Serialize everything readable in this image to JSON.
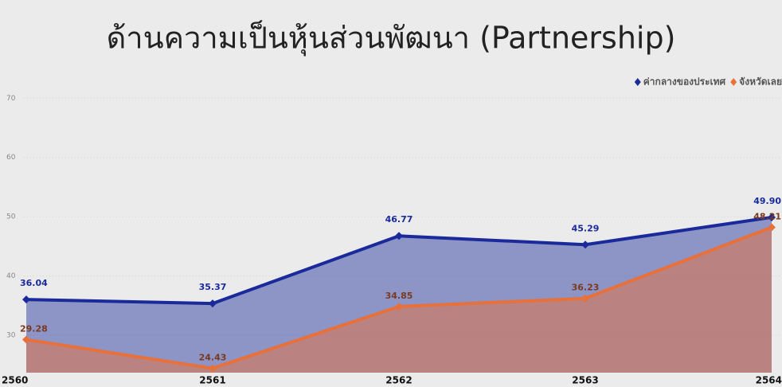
{
  "chart_data": {
    "type": "area",
    "title": "ด้านความเป็นหุ้นส่วนพัฒนา (Partnership)",
    "categories": [
      "2560",
      "2561",
      "2562",
      "2563",
      "2564"
    ],
    "series": [
      {
        "name": "ค่ากลางของประเทศ",
        "color": "#1a2a9a",
        "values": [
          36.04,
          35.37,
          46.77,
          45.29,
          49.9
        ],
        "value_labels": [
          "36.04",
          "35.37",
          "46.77",
          "45.29",
          "49.90"
        ]
      },
      {
        "name": "จังหวัดเลย",
        "color": "#e8703a",
        "values": [
          29.28,
          24.43,
          34.85,
          36.23,
          48.21
        ]
      }
    ],
    "ylim": [
      23.7,
      73.8
    ],
    "yticks": [
      30,
      40,
      50,
      60,
      70
    ],
    "grid": true,
    "legend": "top-right"
  }
}
